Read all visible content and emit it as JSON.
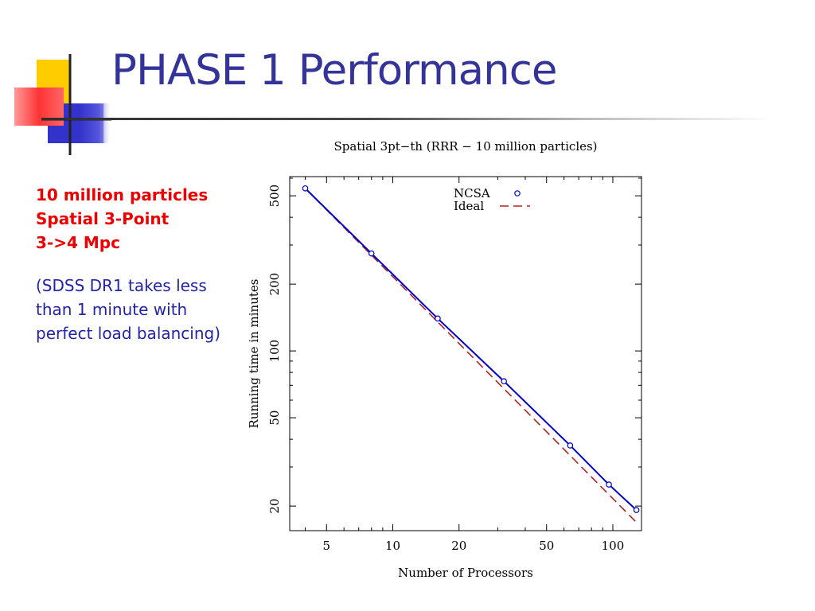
{
  "slide": {
    "title": "PHASE 1 Performance",
    "accent_colors": {
      "title": "#333399",
      "yellow": "#ffcc00",
      "red": "#ff3333",
      "blue": "#3333cc"
    }
  },
  "sidebar": {
    "highlights": [
      "10 million particles",
      "Spatial 3-Point",
      "3->4 Mpc"
    ],
    "note_lines": [
      "(SDSS DR1 takes less",
      "than 1 minute with",
      "perfect load balancing)"
    ],
    "highlight_color": "#ee0000",
    "note_color": "#2222aa"
  },
  "chart_data": {
    "type": "line",
    "title": "Spatial 3pt−th (RRR − 10 million particles)",
    "xlabel": "Number of Processors",
    "ylabel": "Running time in minutes",
    "x_scale": "log",
    "y_scale": "log",
    "xlim": [
      3.4,
      135
    ],
    "ylim": [
      15.5,
      610
    ],
    "x_ticks": [
      5,
      10,
      20,
      50,
      100
    ],
    "y_ticks": [
      20,
      50,
      100,
      200,
      500
    ],
    "x_tick_labels": [
      "5",
      "10",
      "20",
      "50",
      "100"
    ],
    "y_tick_labels": [
      "20",
      "50",
      "100",
      "200",
      "500"
    ],
    "grid": false,
    "legend": "top-right",
    "series": [
      {
        "name": "NCSA",
        "style": "points-line",
        "color": "#0000cc",
        "x": [
          4,
          8,
          16,
          32,
          64,
          96,
          128
        ],
        "y": [
          540,
          275,
          140,
          73,
          37.5,
          25,
          19.2
        ]
      },
      {
        "name": "Ideal",
        "style": "dashed",
        "color": "#b22222",
        "x": [
          4,
          128
        ],
        "y": [
          540,
          16.9
        ]
      }
    ]
  }
}
